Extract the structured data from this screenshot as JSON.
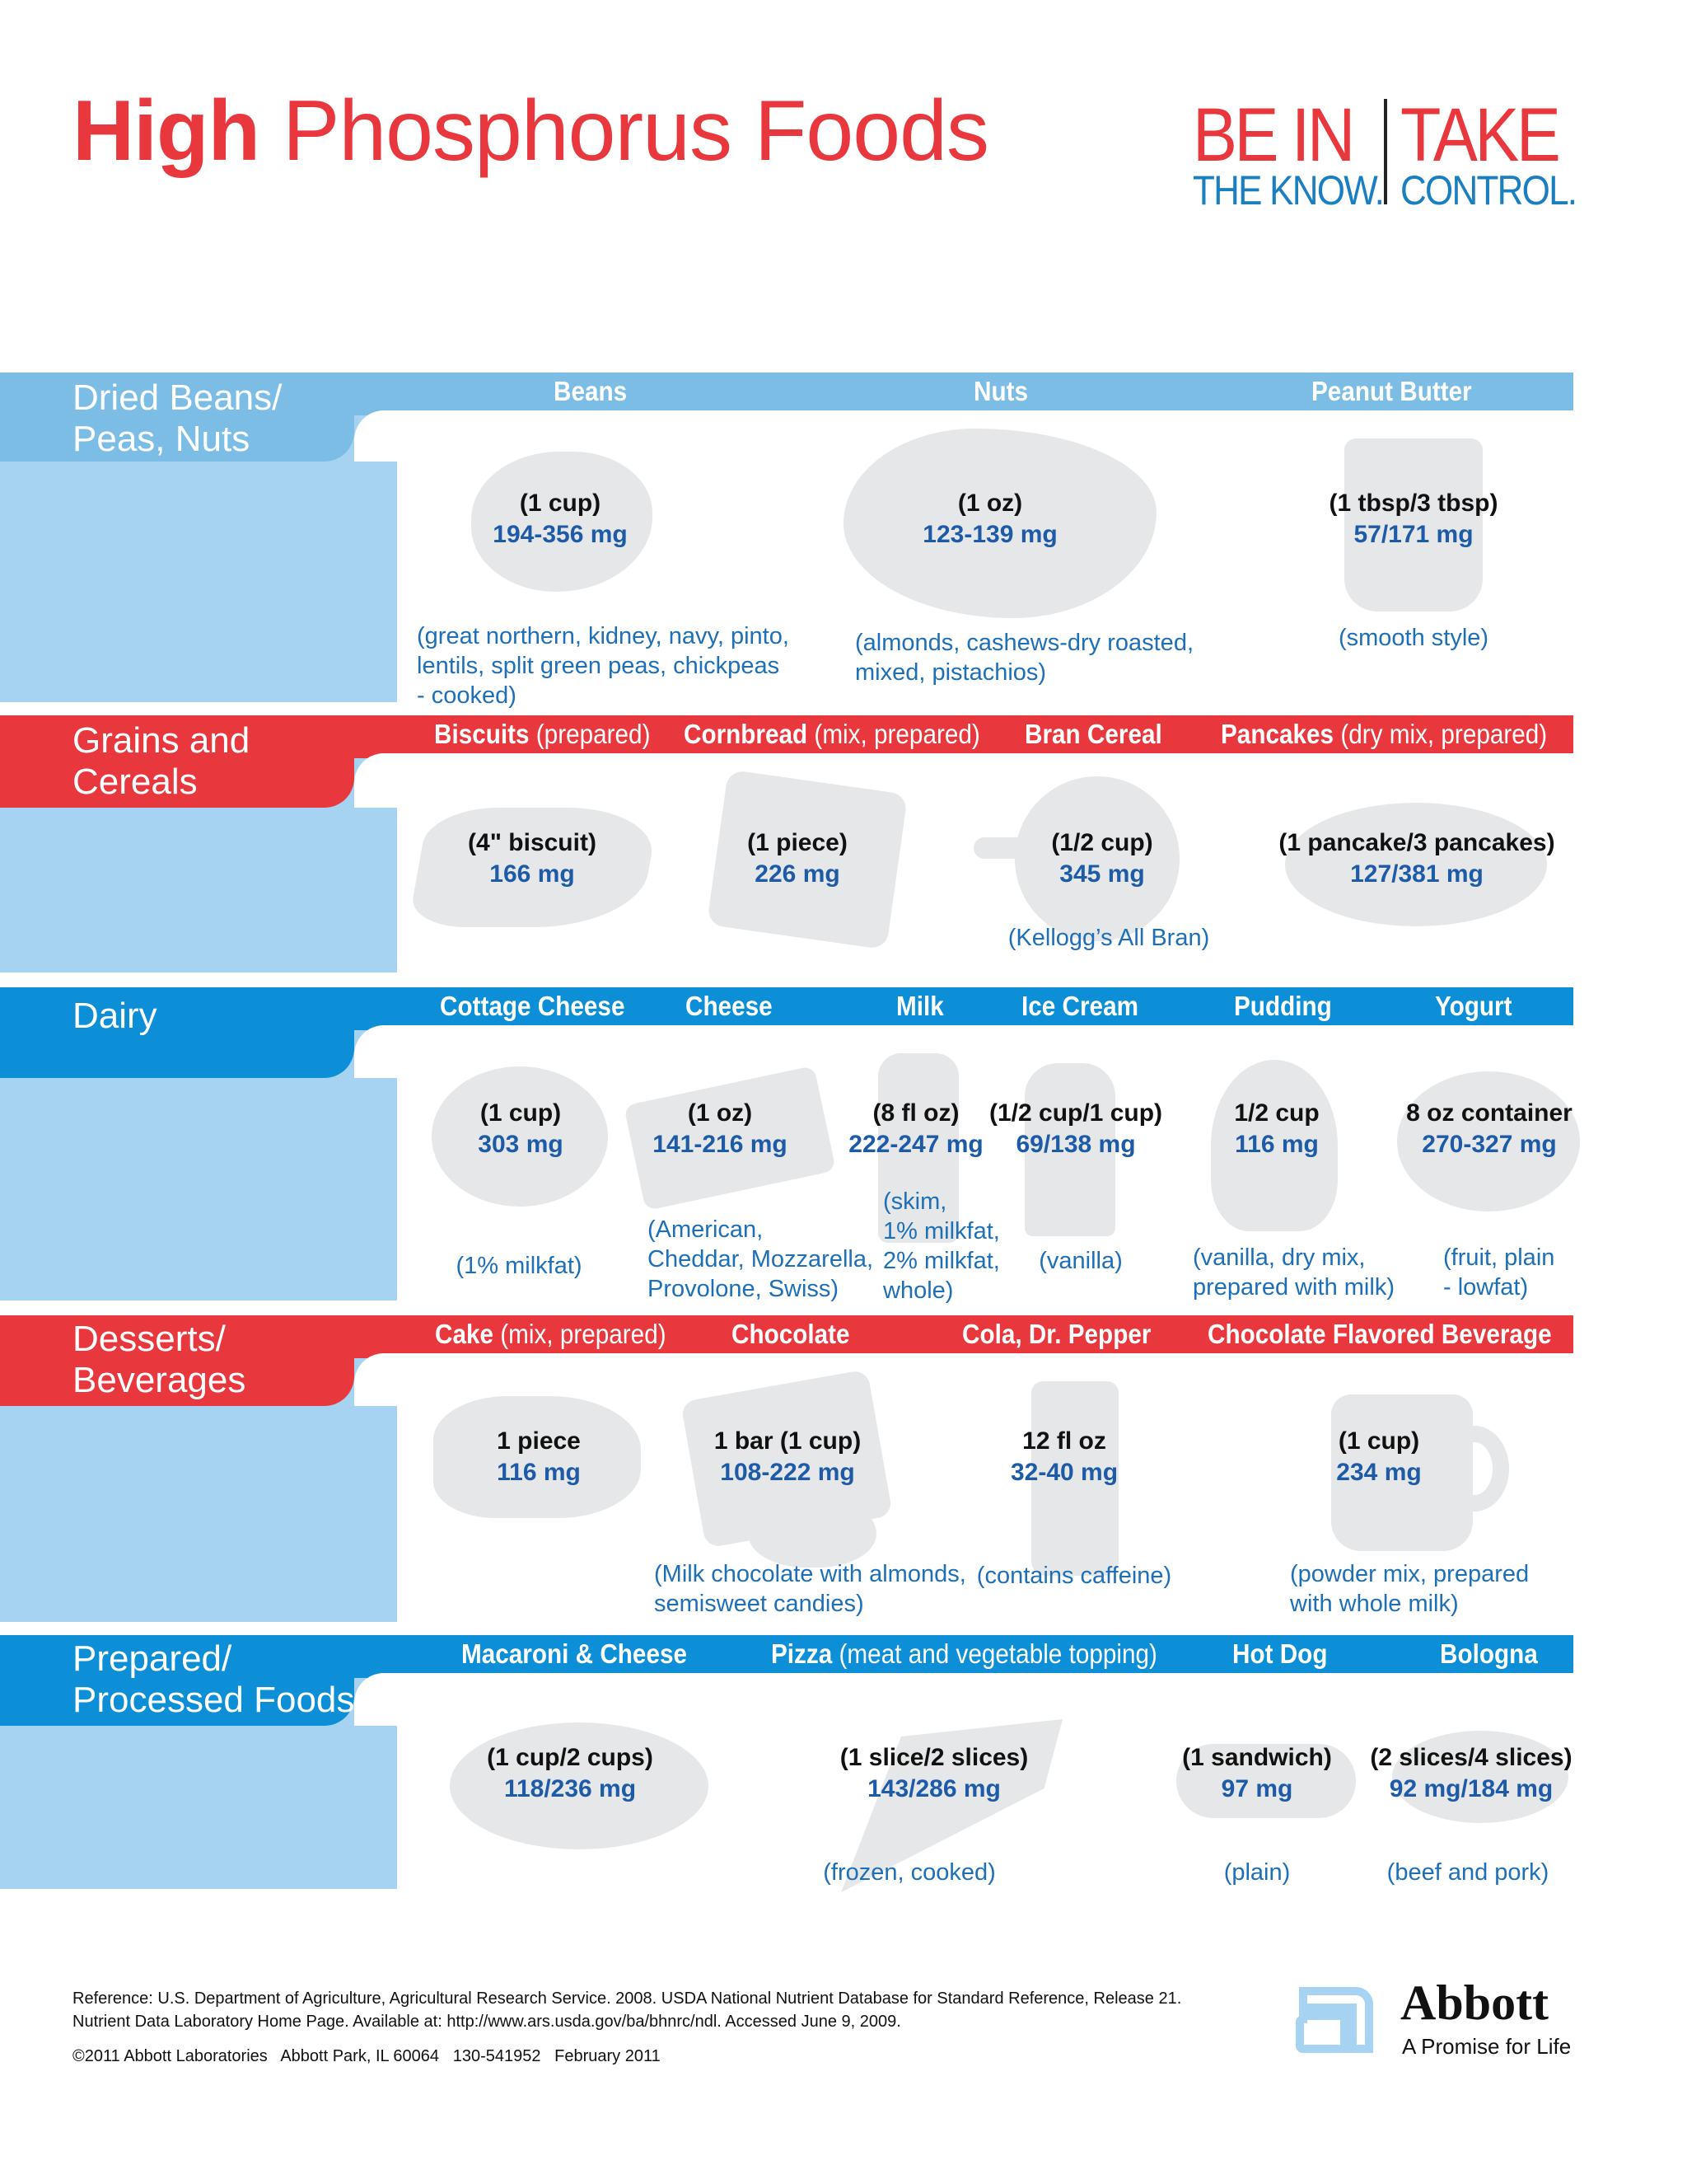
{
  "title": {
    "bold": "High",
    "rest": " Phosphorus Foods"
  },
  "tagline": {
    "be_in": "BE IN",
    "take": "TAKE",
    "the_know": "THE KNOW.",
    "control": "CONTROL."
  },
  "colors": {
    "red": "#e8383d",
    "light_blue": "#a6d3f1",
    "mid_blue": "#7cbde6",
    "dark_blue": "#0c8fd6",
    "text_blue": "#1d5aa7",
    "shape_gray": "#e6e7e8"
  },
  "sections": {
    "beans": {
      "category": "Dried Beans/\nPeas, Nuts",
      "headers": {
        "beans": "Beans",
        "nuts": "Nuts",
        "peanut_butter": "Peanut Butter"
      },
      "items": {
        "beans": {
          "portion": "(1 cup)",
          "mg": "194-356 mg",
          "note": "(great northern, kidney, navy, pinto,\nlentils, split green peas, chickpeas\n- cooked)"
        },
        "nuts": {
          "portion": "(1 oz)",
          "mg": "123-139 mg",
          "note": "(almonds, cashews-dry roasted,\nmixed, pistachios)"
        },
        "peanut_butter": {
          "portion": "(1 tbsp/3 tbsp)",
          "mg": "57/171 mg",
          "note": "(smooth style)"
        }
      }
    },
    "grains": {
      "category": "Grains and\nCereals",
      "headers": {
        "biscuits": "Biscuits",
        "biscuits_light": " (prepared)",
        "cornbread": "Cornbread",
        "cornbread_light": " (mix, prepared)",
        "bran": "Bran Cereal",
        "pancakes": "Pancakes",
        "pancakes_light": " (dry mix, prepared)"
      },
      "items": {
        "biscuits": {
          "portion": "(4\" biscuit)",
          "mg": "166 mg"
        },
        "cornbread": {
          "portion": "(1 piece)",
          "mg": "226 mg"
        },
        "bran": {
          "portion": "(1/2 cup)",
          "mg": "345 mg",
          "note": "(Kellogg’s All Bran)"
        },
        "pancakes": {
          "portion": "(1 pancake/3 pancakes)",
          "mg": "127/381 mg"
        }
      }
    },
    "dairy": {
      "category": "Dairy",
      "headers": {
        "cottage": "Cottage Cheese",
        "cheese": "Cheese",
        "milk": "Milk",
        "icecream": "Ice Cream",
        "pudding": "Pudding",
        "yogurt": "Yogurt"
      },
      "items": {
        "cottage": {
          "portion": "(1 cup)",
          "mg": "303 mg",
          "note": "(1% milkfat)"
        },
        "cheese": {
          "portion": "(1 oz)",
          "mg": "141-216 mg",
          "note": "(American,\nCheddar, Mozzarella,\nProvolone, Swiss)"
        },
        "milk": {
          "portion": "(8 fl oz)",
          "mg": "222-247 mg",
          "note": "(skim,\n1% milkfat,\n2% milkfat,\nwhole)"
        },
        "icecream": {
          "portion": "(1/2 cup/1 cup)",
          "mg": "69/138 mg",
          "note": "(vanilla)"
        },
        "pudding": {
          "portion": "1/2 cup",
          "mg": "116 mg",
          "note": "(vanilla, dry mix,\nprepared with milk)"
        },
        "yogurt": {
          "portion": "8 oz container",
          "mg": "270-327 mg",
          "note": "(fruit, plain\n- lowfat)"
        }
      }
    },
    "desserts": {
      "category": "Desserts/\nBeverages",
      "headers": {
        "cake": "Cake",
        "cake_light": " (mix, prepared)",
        "chocolate": "Chocolate",
        "cola": "Cola, Dr. Pepper",
        "choc_bev": "Chocolate Flavored Beverage"
      },
      "items": {
        "cake": {
          "portion": "1 piece",
          "mg": "116 mg"
        },
        "chocolate": {
          "portion": "1 bar (1 cup)",
          "mg": "108-222 mg",
          "note": "(Milk chocolate with almonds,\nsemisweet candies)"
        },
        "cola": {
          "portion": "12 fl oz",
          "mg": "32-40 mg",
          "note": "(contains caffeine)"
        },
        "choc_bev": {
          "portion": "(1 cup)",
          "mg": "234 mg",
          "note": "(powder mix, prepared\nwith whole milk)"
        }
      }
    },
    "prepared": {
      "category": "Prepared/\nProcessed Foods",
      "headers": {
        "mac": "Macaroni & Cheese",
        "pizza": "Pizza",
        "pizza_light": " (meat and vegetable topping)",
        "hotdog": "Hot Dog",
        "bologna": "Bologna"
      },
      "items": {
        "mac": {
          "portion": "(1 cup/2 cups)",
          "mg": "118/236 mg"
        },
        "pizza": {
          "portion": "(1 slice/2 slices)",
          "mg": "143/286 mg",
          "note": "(frozen, cooked)"
        },
        "hotdog": {
          "portion": "(1 sandwich)",
          "mg": "97 mg",
          "note": "(plain)"
        },
        "bologna": {
          "portion": "(2 slices/4 slices)",
          "mg": "92 mg/184 mg",
          "note": "(beef and pork)"
        }
      }
    }
  },
  "footer": {
    "reference1": "Reference: U.S. Department of Agriculture, Agricultural Research Service. 2008. USDA National Nutrient Database for Standard Reference, Release 21.",
    "reference2": "Nutrient Data Laboratory Home Page. Available at: http://www.ars.usda.gov/ba/bhnrc/ndl. Accessed June 9, 2009.",
    "copyright": "©2011 Abbott Laboratories   Abbott Park, IL 60064   130-541952   February 2011",
    "brand": "Abbott",
    "brand_tagline": "A Promise for Life"
  }
}
